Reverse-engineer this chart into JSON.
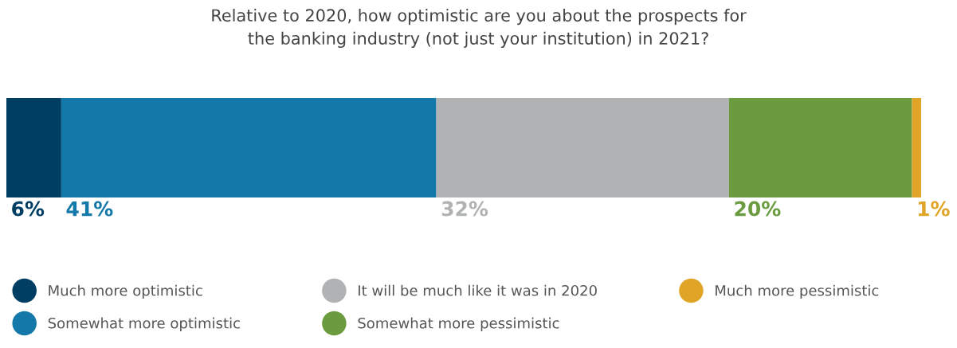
{
  "chart_data": {
    "type": "bar",
    "orientation": "horizontal",
    "stacked": true,
    "title": "Relative to 2020, how optimistic are you about the prospects for\nthe banking industry (not just your institution) in 2021?",
    "categories": [
      null
    ],
    "legend": "bottom",
    "tick_labels": false,
    "series": [
      {
        "name": "Much more optimistic",
        "color": "#003f63",
        "values": [
          6
        ],
        "value_labels": [
          "6%"
        ]
      },
      {
        "name": "Somewhat more optimistic",
        "color": "#1479a8",
        "values": [
          41
        ],
        "value_labels": [
          "41%"
        ]
      },
      {
        "name": "It will be much like it was in 2020",
        "color": "#b1b2b4",
        "values": [
          32
        ],
        "value_labels": [
          "32%"
        ]
      },
      {
        "name": "Somewhat more pessimistic",
        "color": "#6a9c3f",
        "values": [
          20
        ],
        "value_labels": [
          "20%"
        ]
      },
      {
        "name": "Much more pessimistic",
        "color": "#e0a526",
        "values": [
          1
        ],
        "value_labels": [
          "1%"
        ]
      }
    ]
  }
}
